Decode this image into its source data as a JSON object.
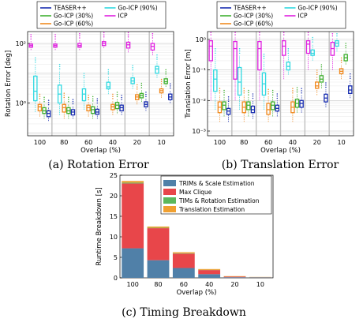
{
  "figure": {
    "captions": {
      "rotation": "(a) Rotation Error",
      "translation": "(b) Translation Error",
      "timing": "(c) Timing Breakdown"
    }
  },
  "chart_data": [
    {
      "id": "rotation",
      "type": "box",
      "xlabel": "Overlap (%)",
      "ylabel": "Rotation Error [deg]",
      "yscale": "log",
      "ylim": [
        0.08,
        250
      ],
      "yticks": [
        {
          "v": 100,
          "label": "10²"
        },
        {
          "v": 1,
          "label": "10⁰"
        }
      ],
      "categories": [
        "100",
        "80",
        "60",
        "40",
        "20",
        "10"
      ],
      "grid": "on",
      "legend": {
        "placement": "top",
        "entries": [
          "TEASER++",
          "Go-ICP (90%)",
          "Go-ICP (30%)",
          "ICP",
          "Go-ICP (60%)"
        ]
      },
      "series": [
        {
          "name": "ICP",
          "color": "#e020e0",
          "boxes": [
            [
              60,
              75,
              85,
              95,
              120
            ],
            [
              60,
              75,
              85,
              95,
              120
            ],
            [
              60,
              75,
              85,
              100,
              130
            ],
            [
              70,
              85,
              100,
              115,
              140
            ],
            [
              50,
              70,
              90,
              110,
              140
            ],
            [
              40,
              60,
              80,
              100,
              130
            ]
          ]
        },
        {
          "name": "Go-ICP (90%)",
          "color": "#30d8e0",
          "boxes": [
            [
              0.5,
              1.2,
              2.5,
              8,
              20
            ],
            [
              0.4,
              1.0,
              2,
              4,
              12
            ],
            [
              0.6,
              1.2,
              2,
              3,
              6
            ],
            [
              2,
              3,
              3.5,
              5,
              8
            ],
            [
              3,
              4.5,
              5.5,
              7,
              11
            ],
            [
              7,
              10,
              14,
              17,
              25
            ]
          ]
        },
        {
          "name": "Go-ICP (60%)",
          "color": "#f08a20",
          "boxes": [
            [
              0.35,
              0.55,
              0.75,
              0.9,
              1.2
            ],
            [
              0.3,
              0.5,
              0.7,
              0.9,
              1.3
            ],
            [
              0.35,
              0.55,
              0.7,
              0.85,
              1.1
            ],
            [
              0.4,
              0.6,
              0.75,
              0.9,
              1.2
            ],
            [
              0.9,
              1.3,
              1.6,
              1.9,
              2.5
            ],
            [
              1.5,
              2.2,
              2.6,
              3,
              3.8
            ]
          ]
        },
        {
          "name": "Go-ICP (30%)",
          "color": "#40b030",
          "boxes": [
            [
              0.3,
              0.45,
              0.55,
              0.7,
              0.95
            ],
            [
              0.3,
              0.45,
              0.55,
              0.7,
              0.95
            ],
            [
              0.3,
              0.45,
              0.6,
              0.75,
              1.0
            ],
            [
              0.45,
              0.65,
              0.85,
              1.05,
              1.4
            ],
            [
              1.1,
              1.5,
              1.8,
              2.1,
              2.8
            ],
            [
              3.5,
              4.5,
              5.2,
              6.5,
              8
            ]
          ]
        },
        {
          "name": "TEASER++",
          "color": "#1a2fb0",
          "boxes": [
            [
              0.25,
              0.35,
              0.45,
              0.55,
              0.75
            ],
            [
              0.3,
              0.4,
              0.5,
              0.6,
              0.8
            ],
            [
              0.3,
              0.42,
              0.5,
              0.62,
              0.85
            ],
            [
              0.4,
              0.55,
              0.7,
              0.85,
              1.1
            ],
            [
              0.55,
              0.75,
              0.9,
              1.1,
              1.4
            ],
            [
              1.0,
              1.3,
              1.6,
              2.0,
              2.7
            ]
          ]
        }
      ]
    },
    {
      "id": "translation",
      "type": "box",
      "xlabel": "Overlap (%)",
      "ylabel": "Translation Error [m]",
      "yscale": "log",
      "ylim": [
        0.0007,
        1.8
      ],
      "yticks": [
        {
          "v": 1,
          "label": "10⁰"
        },
        {
          "v": 0.1,
          "label": "10⁻¹"
        },
        {
          "v": 0.01,
          "label": "10⁻²"
        },
        {
          "v": 0.001,
          "label": "10⁻³"
        }
      ],
      "categories": [
        "100",
        "80",
        "60",
        "40",
        "20",
        "10"
      ],
      "grid": "on",
      "legend": {
        "placement": "top",
        "entries": [
          "TEASER++",
          "Go-ICP (90%)",
          "Go-ICP (30%)",
          "ICP",
          "Go-ICP (60%)"
        ]
      },
      "series": [
        {
          "name": "ICP",
          "color": "#e020e0",
          "boxes": [
            [
              0.01,
              0.2,
              0.6,
              0.9,
              1.2
            ],
            [
              0.01,
              0.05,
              0.5,
              0.85,
              1.2
            ],
            [
              0.01,
              0.1,
              0.5,
              0.85,
              1.2
            ],
            [
              0.05,
              0.3,
              0.6,
              0.9,
              1.2
            ],
            [
              0.1,
              0.35,
              0.7,
              0.9,
              1.2
            ],
            [
              0.1,
              0.3,
              0.5,
              0.8,
              1.1
            ]
          ]
        },
        {
          "name": "Go-ICP (90%)",
          "color": "#30d8e0",
          "boxes": [
            [
              0.005,
              0.02,
              0.05,
              0.1,
              0.3
            ],
            [
              0.005,
              0.015,
              0.04,
              0.12,
              0.3
            ],
            [
              0.005,
              0.015,
              0.035,
              0.08,
              0.2
            ],
            [
              0.07,
              0.1,
              0.13,
              0.18,
              0.3
            ],
            [
              0.2,
              0.3,
              0.35,
              0.45,
              0.7
            ],
            [
              0.4,
              0.6,
              0.75,
              0.9,
              1.1
            ]
          ]
        },
        {
          "name": "Go-ICP (60%)",
          "color": "#f08a20",
          "boxes": [
            [
              0.002,
              0.004,
              0.006,
              0.009,
              0.015
            ],
            [
              0.002,
              0.004,
              0.006,
              0.009,
              0.015
            ],
            [
              0.002,
              0.0035,
              0.005,
              0.008,
              0.014
            ],
            [
              0.002,
              0.004,
              0.006,
              0.009,
              0.015
            ],
            [
              0.015,
              0.025,
              0.03,
              0.04,
              0.06
            ],
            [
              0.05,
              0.075,
              0.09,
              0.11,
              0.15
            ]
          ]
        },
        {
          "name": "Go-ICP (30%)",
          "color": "#40b030",
          "boxes": [
            [
              0.003,
              0.005,
              0.007,
              0.009,
              0.013
            ],
            [
              0.003,
              0.005,
              0.007,
              0.009,
              0.013
            ],
            [
              0.003,
              0.005,
              0.007,
              0.009,
              0.013
            ],
            [
              0.004,
              0.006,
              0.008,
              0.011,
              0.016
            ],
            [
              0.025,
              0.04,
              0.05,
              0.065,
              0.09
            ],
            [
              0.15,
              0.2,
              0.25,
              0.32,
              0.45
            ]
          ]
        },
        {
          "name": "TEASER++",
          "color": "#1a2fb0",
          "boxes": [
            [
              0.002,
              0.0035,
              0.0045,
              0.0055,
              0.008
            ],
            [
              0.0025,
              0.004,
              0.005,
              0.0065,
              0.01
            ],
            [
              0.003,
              0.0045,
              0.0055,
              0.007,
              0.01
            ],
            [
              0.004,
              0.006,
              0.008,
              0.01,
              0.015
            ],
            [
              0.006,
              0.009,
              0.012,
              0.016,
              0.023
            ],
            [
              0.012,
              0.017,
              0.022,
              0.03,
              0.045
            ]
          ]
        }
      ]
    },
    {
      "id": "timing",
      "type": "bar",
      "stacked": true,
      "xlabel": "Overlap (%)",
      "ylabel": "Runtime Breakdown [s]",
      "ylim": [
        0,
        25
      ],
      "yticks": [
        0,
        5,
        10,
        15,
        20,
        25
      ],
      "categories": [
        "100",
        "80",
        "60",
        "40",
        "20",
        "10"
      ],
      "grid": "off",
      "legend": {
        "placement": "top-right"
      },
      "series": [
        {
          "name": "TRIMs & Scale Estimation",
          "color": "#5080a8",
          "values": [
            7.2,
            4.3,
            2.4,
            0.9,
            0.15,
            0.1
          ]
        },
        {
          "name": "Max Clique",
          "color": "#e8464a",
          "values": [
            15.8,
            7.8,
            3.5,
            1.0,
            0.15,
            0.05
          ]
        },
        {
          "name": "TIMs & Rotation Estimation",
          "color": "#5cb85c",
          "values": [
            0.2,
            0.1,
            0.1,
            0.05,
            0.02,
            0.02
          ]
        },
        {
          "name": "Translation Estimation",
          "color": "#f0a030",
          "values": [
            0.4,
            0.3,
            0.25,
            0.2,
            0.1,
            0.05
          ]
        }
      ]
    }
  ]
}
